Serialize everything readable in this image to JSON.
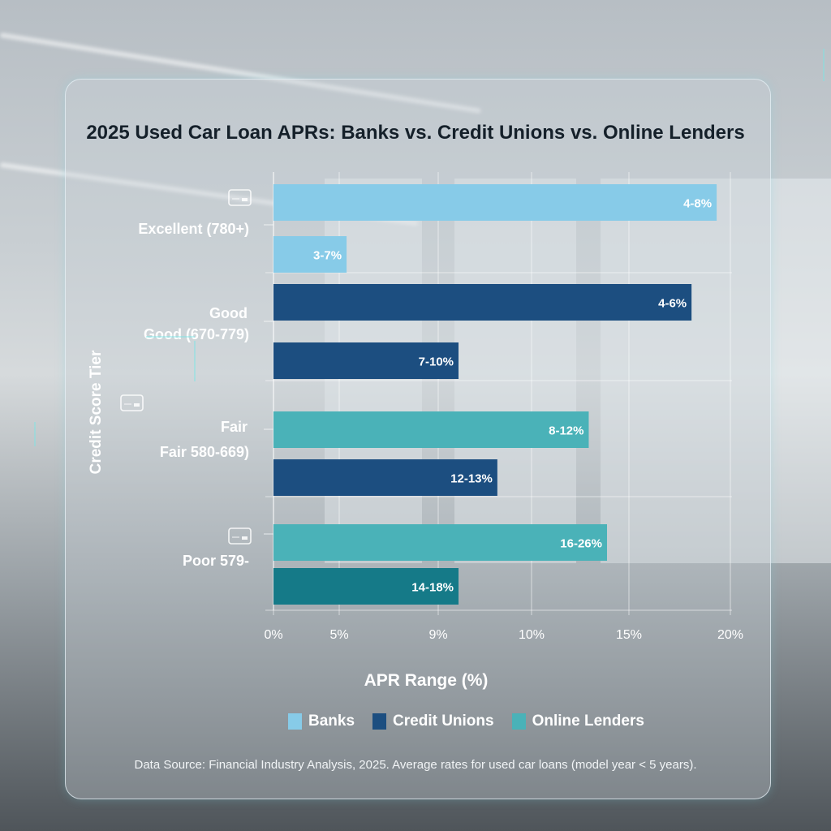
{
  "chart_data": {
    "type": "bar",
    "orientation": "horizontal",
    "title": "2025 Used Car Loan APRs: Banks vs. Credit Unions vs. Online Lenders",
    "xlabel": "APR Range (%)",
    "ylabel": "Credit Score Tier",
    "xlim": [
      0,
      20
    ],
    "x_tick_labels": [
      "0%",
      "5%",
      "9%",
      "10%",
      "15%",
      "20%"
    ],
    "categories": [
      {
        "label_top": "",
        "label": "Excellent (780+)"
      },
      {
        "label_top": "Good",
        "label": "Good (670-779)"
      },
      {
        "label_top": "Fair",
        "label": "Fair 580-669)"
      },
      {
        "label_top": "",
        "label": "Poor 579-"
      }
    ],
    "bars": [
      {
        "category": 0,
        "series": "Banks",
        "value": 19.4,
        "label": "4-8%",
        "color": "#87cbe8"
      },
      {
        "category": 0,
        "series": "Banks",
        "value": 3.2,
        "label": "3-7%",
        "color": "#87cbe8"
      },
      {
        "category": 1,
        "series": "Credit Unions",
        "value": 18.3,
        "label": "4-6%",
        "color": "#1c4e80"
      },
      {
        "category": 1,
        "series": "Credit Unions",
        "value": 8.1,
        "label": "7-10%",
        "color": "#1c4e80"
      },
      {
        "category": 2,
        "series": "Online Lenders",
        "value": 13.8,
        "label": "8-12%",
        "color": "#4ab2b8"
      },
      {
        "category": 2,
        "series": "Credit Unions",
        "value": 9.8,
        "label": "12-13%",
        "color": "#1c4e80"
      },
      {
        "category": 3,
        "series": "Online Lenders",
        "value": 14.6,
        "label": "16-26%",
        "color": "#4ab2b8"
      },
      {
        "category": 3,
        "series": "Online Lenders",
        "value": 8.1,
        "label": "14-18%",
        "color": "#157a88"
      }
    ],
    "legend": [
      {
        "name": "Banks",
        "color": "#87cbe8"
      },
      {
        "name": "Credit Unions",
        "color": "#1c4e80"
      },
      {
        "name": "Online Lenders",
        "color": "#4ab2b8"
      }
    ],
    "legend_position": "bottom",
    "grid": true
  },
  "icons": [
    "credit-card-icon"
  ],
  "footer": "Data Source: Financial Industry Analysis, 2025. Average rates for used car loans (model year < 5 years)."
}
